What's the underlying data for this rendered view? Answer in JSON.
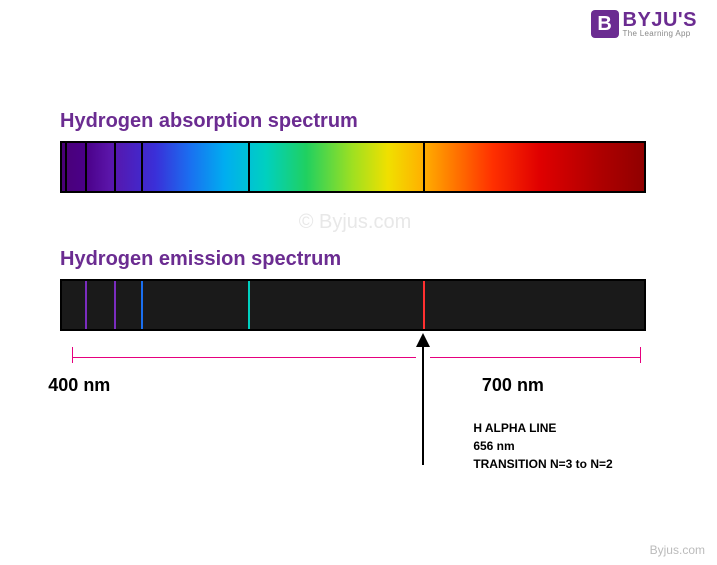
{
  "logo": {
    "mark": "B",
    "main": "BYJU'S",
    "sub": "The Learning App"
  },
  "watermark": "© Byjus.com",
  "bottomWatermark": "Byjus.com",
  "absorption": {
    "title": "Hydrogen absorption spectrum",
    "lineColor": "#000000",
    "linePositionsPct": [
      0.5,
      4.0,
      9.0,
      13.5,
      32.0,
      62.0
    ]
  },
  "emission": {
    "title": "Hydrogen emission spectrum",
    "lines": [
      {
        "pct": 4.0,
        "color": "#7b2cbf"
      },
      {
        "pct": 9.0,
        "color": "#7b2cbf"
      },
      {
        "pct": 13.5,
        "color": "#1a6ff0"
      },
      {
        "pct": 32.0,
        "color": "#00d0c0"
      },
      {
        "pct": 62.0,
        "color": "#ff3030"
      }
    ]
  },
  "axis": {
    "leftLabel": "400 nm",
    "rightLabel": "700 nm",
    "color": "#e6007e",
    "leftTickPct": 2.0,
    "arrowPct": 62.0,
    "rightTickPct": 99.0,
    "leftLineStartPct": 2.0,
    "leftLineEndPct": 60.8,
    "rightLineStartPct": 63.2,
    "rightLineEndPct": 99.0
  },
  "annotation": {
    "line1": "H ALPHA LINE",
    "line2": "656 nm",
    "line3": "TRANSITION N=3 to N=2"
  },
  "colors": {
    "titleColor": "#6b2c91",
    "textColor": "#000000",
    "watermarkColor": "#e8e8e8"
  },
  "fonts": {
    "titleSize": 20,
    "axisLabelSize": 18,
    "annotationSize": 12
  }
}
